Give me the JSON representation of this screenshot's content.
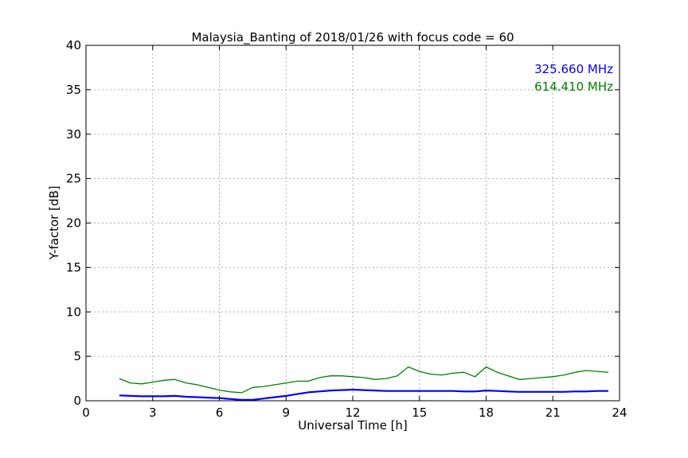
{
  "chart_data": {
    "type": "line",
    "title": "Malaysia_Banting of 2018/01/26 with focus code = 60",
    "xlabel": "Universal Time [h]",
    "ylabel": "Y-factor [dB]",
    "xlim": [
      0,
      24
    ],
    "ylim": [
      0,
      40
    ],
    "xticks": [
      0,
      3,
      6,
      9,
      12,
      15,
      18,
      21,
      24
    ],
    "yticks": [
      0,
      5,
      10,
      15,
      20,
      25,
      30,
      35,
      40
    ],
    "grid": true,
    "legend_placement": "top-right",
    "series": [
      {
        "name": "325.660 MHz",
        "color": "#0000ff",
        "x": [
          1.5,
          2.0,
          2.5,
          3.0,
          3.5,
          4.0,
          4.5,
          5.0,
          5.5,
          6.0,
          6.5,
          7.0,
          7.5,
          8.0,
          8.5,
          9.0,
          9.5,
          10.0,
          10.5,
          11.0,
          11.5,
          12.0,
          12.5,
          13.0,
          13.5,
          14.0,
          14.5,
          15.0,
          15.5,
          16.0,
          16.5,
          17.0,
          17.5,
          18.0,
          18.5,
          19.0,
          19.5,
          20.0,
          20.5,
          21.0,
          21.5,
          22.0,
          22.5,
          23.0,
          23.5
        ],
        "y": [
          0.6,
          0.55,
          0.5,
          0.5,
          0.5,
          0.55,
          0.45,
          0.4,
          0.35,
          0.3,
          0.2,
          0.1,
          0.1,
          0.25,
          0.4,
          0.55,
          0.75,
          0.95,
          1.05,
          1.15,
          1.2,
          1.25,
          1.2,
          1.15,
          1.1,
          1.1,
          1.1,
          1.1,
          1.1,
          1.1,
          1.1,
          1.05,
          1.05,
          1.15,
          1.1,
          1.05,
          1.0,
          1.0,
          1.0,
          1.0,
          1.0,
          1.05,
          1.05,
          1.1,
          1.1
        ]
      },
      {
        "name": "614.410 MHz",
        "color": "#008000",
        "x": [
          1.5,
          2.0,
          2.5,
          3.0,
          3.5,
          4.0,
          4.5,
          5.0,
          5.5,
          6.0,
          6.5,
          7.0,
          7.5,
          8.0,
          8.5,
          9.0,
          9.5,
          10.0,
          10.5,
          11.0,
          11.5,
          12.0,
          12.5,
          13.0,
          13.5,
          14.0,
          14.5,
          15.0,
          15.5,
          16.0,
          16.5,
          17.0,
          17.5,
          18.0,
          18.5,
          19.0,
          19.5,
          20.0,
          20.5,
          21.0,
          21.5,
          22.0,
          22.5,
          23.0,
          23.5
        ],
        "y": [
          2.5,
          2.0,
          1.9,
          2.1,
          2.3,
          2.4,
          2.0,
          1.8,
          1.5,
          1.2,
          1.0,
          0.9,
          1.5,
          1.6,
          1.8,
          2.0,
          2.2,
          2.2,
          2.6,
          2.8,
          2.8,
          2.7,
          2.6,
          2.4,
          2.5,
          2.8,
          3.8,
          3.3,
          3.0,
          2.9,
          3.1,
          3.2,
          2.7,
          3.8,
          3.2,
          2.8,
          2.4,
          2.5,
          2.6,
          2.7,
          2.9,
          3.2,
          3.4,
          3.3,
          3.2
        ]
      }
    ]
  }
}
